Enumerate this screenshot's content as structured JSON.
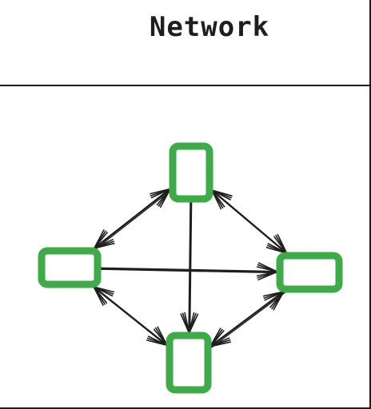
{
  "title": "Network",
  "colors": {
    "node_stroke": "#3dab48",
    "edge": "#1e1e1e",
    "ink": "#1e1e1e"
  },
  "nodes": [
    {
      "id": "top"
    },
    {
      "id": "left"
    },
    {
      "id": "right"
    },
    {
      "id": "bottom"
    }
  ],
  "edges": [
    {
      "from": "left",
      "to": "top",
      "arrow_end": true,
      "arrow_start": true
    },
    {
      "from": "top",
      "to": "right",
      "arrow_end": true,
      "arrow_start": true
    },
    {
      "from": "right",
      "to": "bottom",
      "arrow_end": true,
      "arrow_start": true
    },
    {
      "from": "bottom",
      "to": "left",
      "arrow_end": true,
      "arrow_start": true
    },
    {
      "from": "left",
      "to": "right",
      "arrow_end": true,
      "arrow_start": false
    },
    {
      "from": "top",
      "to": "bottom",
      "arrow_end": true,
      "arrow_start": false
    }
  ]
}
